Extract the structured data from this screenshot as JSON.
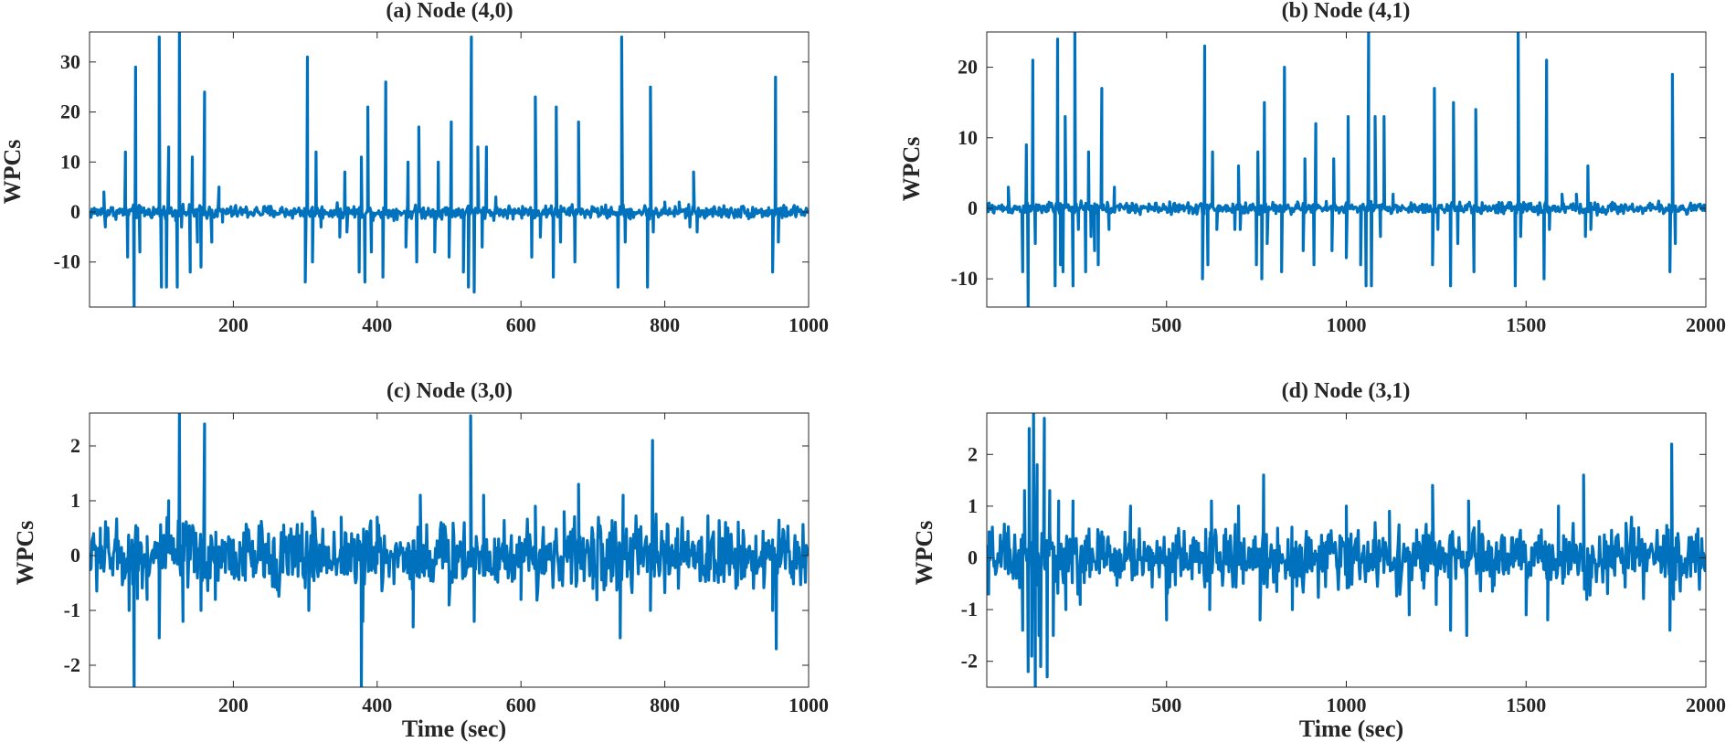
{
  "figure": {
    "line_color": "#0072BD",
    "text_color": "#262626",
    "axis_color": "#262626"
  },
  "chart_data": [
    {
      "type": "line",
      "title": "(a) Node (4,0)",
      "xlabel": "",
      "ylabel": "WPCs",
      "xlim": [
        0,
        1000
      ],
      "ylim": [
        -19,
        36
      ],
      "xticks": [
        200,
        400,
        600,
        800,
        1000
      ],
      "yticks": [
        -10,
        0,
        10,
        20,
        30
      ],
      "grid": false,
      "series": [
        {
          "noise": 0.8,
          "peaks": [
            [
              20,
              4
            ],
            [
              22,
              -3
            ],
            [
              50,
              12
            ],
            [
              53,
              -9
            ],
            [
              62,
              -19
            ],
            [
              64,
              29
            ],
            [
              70,
              -8
            ],
            [
              97,
              35
            ],
            [
              100,
              -15
            ],
            [
              107,
              -15
            ],
            [
              110,
              13
            ],
            [
              122,
              -15
            ],
            [
              125,
              36
            ],
            [
              128,
              -3
            ],
            [
              140,
              -12
            ],
            [
              143,
              11
            ],
            [
              150,
              -6
            ],
            [
              155,
              -11
            ],
            [
              160,
              24
            ],
            [
              170,
              -6
            ],
            [
              180,
              5
            ],
            [
              185,
              -2
            ],
            [
              300,
              -14
            ],
            [
              303,
              31
            ],
            [
              310,
              -10
            ],
            [
              315,
              12
            ],
            [
              322,
              -3
            ],
            [
              348,
              -5
            ],
            [
              355,
              8
            ],
            [
              358,
              -4
            ],
            [
              375,
              -12
            ],
            [
              378,
              11
            ],
            [
              383,
              -14
            ],
            [
              387,
              21
            ],
            [
              392,
              -8
            ],
            [
              408,
              -13
            ],
            [
              412,
              26
            ],
            [
              440,
              -7
            ],
            [
              443,
              10
            ],
            [
              455,
              -10
            ],
            [
              458,
              17
            ],
            [
              480,
              -8
            ],
            [
              485,
              10
            ],
            [
              500,
              -9
            ],
            [
              503,
              18
            ],
            [
              520,
              -12
            ],
            [
              527,
              -15
            ],
            [
              531,
              35
            ],
            [
              535,
              -16
            ],
            [
              540,
              13
            ],
            [
              546,
              -7
            ],
            [
              552,
              13
            ],
            [
              565,
              3
            ],
            [
              615,
              -9
            ],
            [
              620,
              23
            ],
            [
              627,
              -5
            ],
            [
              645,
              -13
            ],
            [
              649,
              21
            ],
            [
              655,
              -6
            ],
            [
              675,
              -10
            ],
            [
              680,
              18
            ],
            [
              735,
              -15
            ],
            [
              740,
              35
            ],
            [
              745,
              -6
            ],
            [
              776,
              -15
            ],
            [
              780,
              25
            ],
            [
              784,
              -4
            ],
            [
              800,
              2
            ],
            [
              820,
              2
            ],
            [
              835,
              -3
            ],
            [
              840,
              8
            ],
            [
              845,
              -4
            ],
            [
              950,
              -12
            ],
            [
              954,
              27
            ],
            [
              958,
              -6
            ]
          ]
        }
      ]
    },
    {
      "type": "line",
      "title": "(b) Node (4,1)",
      "xlabel": "",
      "ylabel": "WPCs",
      "xlim": [
        0,
        2000
      ],
      "ylim": [
        -14,
        25
      ],
      "xticks": [
        500,
        1000,
        1500,
        2000
      ],
      "yticks": [
        -10,
        0,
        10,
        20
      ],
      "grid": false,
      "series": [
        {
          "noise": 0.5,
          "peaks": [
            [
              60,
              3
            ],
            [
              100,
              -9
            ],
            [
              110,
              9
            ],
            [
              115,
              -14
            ],
            [
              128,
              21
            ],
            [
              135,
              -5
            ],
            [
              190,
              -11
            ],
            [
              197,
              24
            ],
            [
              205,
              -8
            ],
            [
              212,
              -9
            ],
            [
              218,
              13
            ],
            [
              240,
              -11
            ],
            [
              245,
              25
            ],
            [
              255,
              -3
            ],
            [
              275,
              -9
            ],
            [
              283,
              8
            ],
            [
              290,
              -4
            ],
            [
              300,
              -6
            ],
            [
              310,
              -8
            ],
            [
              320,
              17
            ],
            [
              340,
              -3
            ],
            [
              355,
              3
            ],
            [
              600,
              -10
            ],
            [
              606,
              23
            ],
            [
              615,
              -8
            ],
            [
              628,
              8
            ],
            [
              640,
              -3
            ],
            [
              690,
              -3
            ],
            [
              700,
              6
            ],
            [
              705,
              -3
            ],
            [
              750,
              -8
            ],
            [
              754,
              8
            ],
            [
              765,
              -10
            ],
            [
              772,
              15
            ],
            [
              780,
              -5
            ],
            [
              820,
              -9
            ],
            [
              828,
              20
            ],
            [
              880,
              -6
            ],
            [
              885,
              7
            ],
            [
              910,
              -8
            ],
            [
              915,
              12
            ],
            [
              960,
              -6
            ],
            [
              965,
              7
            ],
            [
              1000,
              -7
            ],
            [
              1005,
              13
            ],
            [
              1040,
              -8
            ],
            [
              1055,
              -11
            ],
            [
              1062,
              25
            ],
            [
              1070,
              -11
            ],
            [
              1080,
              13
            ],
            [
              1095,
              -4
            ],
            [
              1105,
              13
            ],
            [
              1130,
              2
            ],
            [
              1240,
              -8
            ],
            [
              1245,
              17
            ],
            [
              1255,
              -3
            ],
            [
              1290,
              -11
            ],
            [
              1298,
              15
            ],
            [
              1310,
              -5
            ],
            [
              1355,
              -9
            ],
            [
              1360,
              14
            ],
            [
              1470,
              -11
            ],
            [
              1478,
              25
            ],
            [
              1485,
              -4
            ],
            [
              1550,
              -10
            ],
            [
              1557,
              21
            ],
            [
              1565,
              -3
            ],
            [
              1600,
              2
            ],
            [
              1640,
              2
            ],
            [
              1665,
              -4
            ],
            [
              1672,
              6
            ],
            [
              1680,
              -3
            ],
            [
              1900,
              -9
            ],
            [
              1907,
              19
            ],
            [
              1915,
              -5
            ]
          ]
        }
      ]
    },
    {
      "type": "line",
      "title": "(c) Node (3,0)",
      "xlabel": "Time (sec)",
      "ylabel": "WPCs",
      "xlim": [
        0,
        1000
      ],
      "ylim": [
        -2.4,
        2.6
      ],
      "xticks": [
        200,
        400,
        600,
        800,
        1000
      ],
      "yticks": [
        -2,
        -1,
        0,
        1,
        2
      ],
      "grid": false,
      "series": [
        {
          "noise": 0.38,
          "peaks": [
            [
              5,
              0.3
            ],
            [
              15,
              0.5
            ],
            [
              55,
              -1.0
            ],
            [
              62,
              -2.4
            ],
            [
              67,
              0.5
            ],
            [
              80,
              -0.8
            ],
            [
              97,
              -1.5
            ],
            [
              110,
              1.0
            ],
            [
              125,
              2.6
            ],
            [
              130,
              -1.2
            ],
            [
              155,
              -1.0
            ],
            [
              160,
              2.4
            ],
            [
              175,
              -0.8
            ],
            [
              305,
              -1.0
            ],
            [
              310,
              0.8
            ],
            [
              350,
              0.7
            ],
            [
              378,
              -2.4
            ],
            [
              380,
              -1.2
            ],
            [
              400,
              0.7
            ],
            [
              450,
              -1.3
            ],
            [
              460,
              1.1
            ],
            [
              500,
              -0.9
            ],
            [
              530,
              2.55
            ],
            [
              535,
              -1.2
            ],
            [
              548,
              1.1
            ],
            [
              600,
              -0.8
            ],
            [
              620,
              0.9
            ],
            [
              660,
              0.8
            ],
            [
              680,
              1.3
            ],
            [
              700,
              -0.6
            ],
            [
              738,
              -1.5
            ],
            [
              742,
              1.1
            ],
            [
              780,
              -1.0
            ],
            [
              783,
              2.1
            ],
            [
              950,
              -1.0
            ],
            [
              955,
              -1.7
            ],
            [
              960,
              0.3
            ]
          ]
        }
      ]
    },
    {
      "type": "line",
      "title": "(d) Node (3,1)",
      "xlabel": "Time (sec)",
      "ylabel": "WPCs",
      "xlim": [
        0,
        2000
      ],
      "ylim": [
        -2.5,
        2.8
      ],
      "xticks": [
        500,
        1000,
        1500,
        2000
      ],
      "yticks": [
        -2,
        -1,
        0,
        1,
        2
      ],
      "grid": false,
      "series": [
        {
          "noise": 0.35,
          "peaks": [
            [
              5,
              -0.7
            ],
            [
              60,
              0.6
            ],
            [
              100,
              -1.4
            ],
            [
              105,
              1.3
            ],
            [
              115,
              -2.2
            ],
            [
              118,
              2.5
            ],
            [
              125,
              -1.9
            ],
            [
              130,
              2.8
            ],
            [
              135,
              -2.5
            ],
            [
              140,
              1.8
            ],
            [
              145,
              -1.5
            ],
            [
              150,
              -2.1
            ],
            [
              160,
              2.7
            ],
            [
              168,
              -2.3
            ],
            [
              175,
              1.3
            ],
            [
              185,
              -1.5
            ],
            [
              200,
              1.1
            ],
            [
              220,
              -1.0
            ],
            [
              240,
              1.1
            ],
            [
              260,
              -0.9
            ],
            [
              400,
              1.0
            ],
            [
              500,
              -1.2
            ],
            [
              620,
              -1.0
            ],
            [
              625,
              1.1
            ],
            [
              700,
              1.0
            ],
            [
              760,
              -1.2
            ],
            [
              770,
              1.6
            ],
            [
              850,
              -1.0
            ],
            [
              1000,
              1.0
            ],
            [
              1120,
              0.9
            ],
            [
              1175,
              -1.1
            ],
            [
              1240,
              1.4
            ],
            [
              1250,
              -0.9
            ],
            [
              1290,
              -1.4
            ],
            [
              1335,
              -1.5
            ],
            [
              1340,
              1.1
            ],
            [
              1500,
              -1.1
            ],
            [
              1560,
              -1.2
            ],
            [
              1590,
              1.0
            ],
            [
              1660,
              1.6
            ],
            [
              1900,
              -1.4
            ],
            [
              1905,
              2.2
            ],
            [
              1910,
              -0.8
            ]
          ]
        }
      ]
    }
  ]
}
